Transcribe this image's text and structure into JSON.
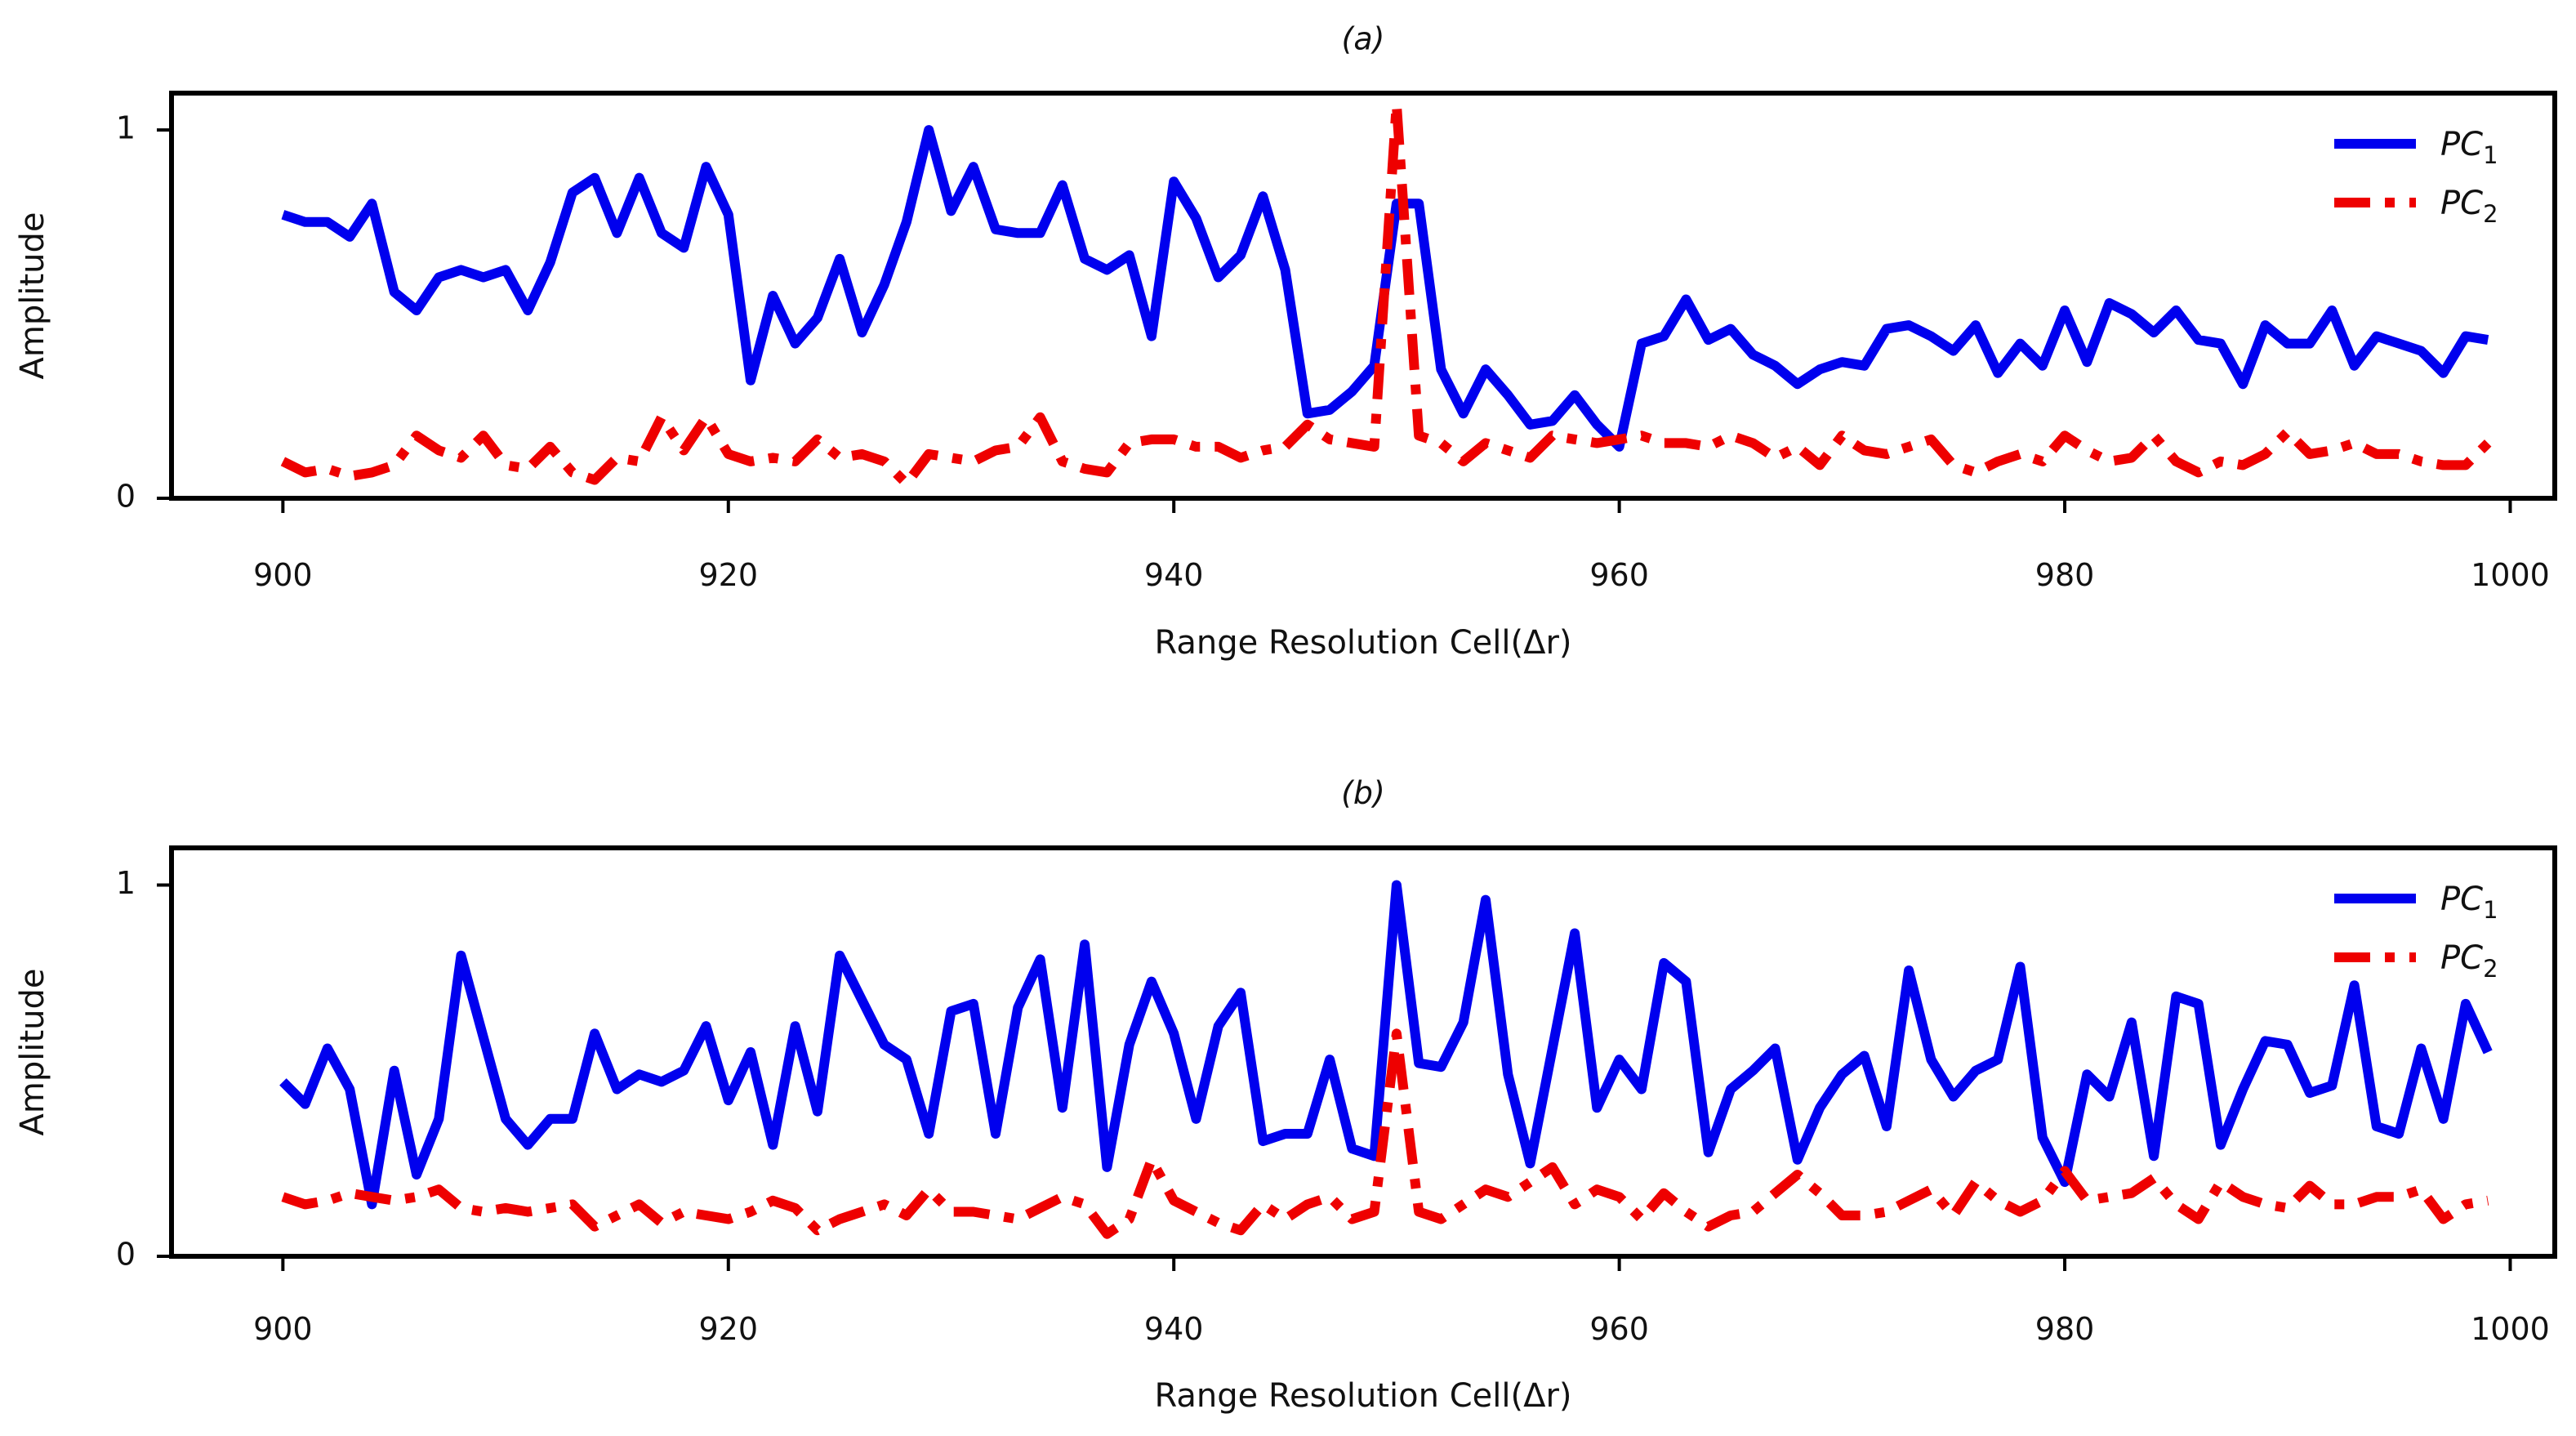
{
  "chart_data": [
    {
      "type": "line",
      "title": "(a)",
      "xlabel": "Range Resolution Cell(Δr)",
      "ylabel": "Amplitude",
      "xlim": [
        895,
        1002
      ],
      "ylim": [
        0,
        1.1
      ],
      "xticks": [
        900,
        920,
        940,
        960,
        980,
        1000
      ],
      "xtick_labels": [
        "900",
        "920",
        "940",
        "960",
        "980",
        "1000"
      ],
      "yticks": [
        0,
        1
      ],
      "ytick_labels": [
        "0",
        "1"
      ],
      "legend_position": "top-right",
      "x_start": 900,
      "series": [
        {
          "name": "PC",
          "subscript": "1",
          "color": "#0000ee",
          "style": "solid",
          "values": [
            0.77,
            0.75,
            0.75,
            0.71,
            0.8,
            0.56,
            0.51,
            0.6,
            0.62,
            0.6,
            0.62,
            0.51,
            0.64,
            0.83,
            0.87,
            0.72,
            0.87,
            0.72,
            0.68,
            0.9,
            0.77,
            0.32,
            0.55,
            0.42,
            0.49,
            0.65,
            0.45,
            0.58,
            0.75,
            1.0,
            0.78,
            0.9,
            0.73,
            0.72,
            0.72,
            0.85,
            0.65,
            0.62,
            0.66,
            0.44,
            0.86,
            0.76,
            0.6,
            0.66,
            0.82,
            0.62,
            0.23,
            0.24,
            0.29,
            0.36,
            0.8,
            0.8,
            0.35,
            0.23,
            0.35,
            0.28,
            0.2,
            0.21,
            0.28,
            0.2,
            0.14,
            0.42,
            0.44,
            0.54,
            0.43,
            0.46,
            0.39,
            0.36,
            0.31,
            0.35,
            0.37,
            0.36,
            0.46,
            0.47,
            0.44,
            0.4,
            0.47,
            0.34,
            0.42,
            0.36,
            0.51,
            0.37,
            0.53,
            0.5,
            0.45,
            0.51,
            0.43,
            0.42,
            0.31,
            0.47,
            0.42,
            0.42,
            0.51,
            0.36,
            0.44,
            0.42,
            0.4,
            0.34,
            0.44,
            0.43
          ]
        },
        {
          "name": "PC",
          "subscript": "2",
          "color": "#ee0000",
          "style": "dashdot",
          "values": [
            0.1,
            0.07,
            0.08,
            0.06,
            0.07,
            0.09,
            0.17,
            0.13,
            0.11,
            0.17,
            0.09,
            0.08,
            0.14,
            0.07,
            0.05,
            0.11,
            0.1,
            0.22,
            0.13,
            0.22,
            0.12,
            0.1,
            0.11,
            0.1,
            0.16,
            0.11,
            0.12,
            0.1,
            0.04,
            0.12,
            0.11,
            0.1,
            0.13,
            0.14,
            0.22,
            0.1,
            0.08,
            0.07,
            0.15,
            0.16,
            0.16,
            0.14,
            0.14,
            0.11,
            0.13,
            0.14,
            0.2,
            0.16,
            0.15,
            0.14,
            1.07,
            0.17,
            0.15,
            0.1,
            0.15,
            0.13,
            0.11,
            0.17,
            0.16,
            0.15,
            0.16,
            0.17,
            0.15,
            0.15,
            0.14,
            0.17,
            0.15,
            0.11,
            0.14,
            0.09,
            0.17,
            0.13,
            0.12,
            0.14,
            0.16,
            0.09,
            0.07,
            0.1,
            0.12,
            0.1,
            0.17,
            0.13,
            0.1,
            0.11,
            0.17,
            0.1,
            0.07,
            0.1,
            0.09,
            0.12,
            0.18,
            0.12,
            0.13,
            0.15,
            0.12,
            0.12,
            0.1,
            0.09,
            0.09,
            0.15
          ]
        }
      ]
    },
    {
      "type": "line",
      "title": "(b)",
      "xlabel": "Range Resolution Cell(Δr)",
      "ylabel": "Amplitude",
      "xlim": [
        895,
        1002
      ],
      "ylim": [
        0,
        1.1
      ],
      "xticks": [
        900,
        920,
        940,
        960,
        980,
        1000
      ],
      "xtick_labels": [
        "900",
        "920",
        "940",
        "960",
        "980",
        "1000"
      ],
      "yticks": [
        0,
        1
      ],
      "ytick_labels": [
        "0",
        "1"
      ],
      "legend_position": "top-right",
      "x_start": 900,
      "series": [
        {
          "name": "PC",
          "subscript": "1",
          "color": "#0000ee",
          "style": "solid",
          "values": [
            0.47,
            0.41,
            0.56,
            0.45,
            0.14,
            0.5,
            0.22,
            0.37,
            0.81,
            0.59,
            0.37,
            0.3,
            0.37,
            0.37,
            0.6,
            0.45,
            0.49,
            0.47,
            0.5,
            0.62,
            0.42,
            0.55,
            0.3,
            0.62,
            0.39,
            0.81,
            0.69,
            0.57,
            0.53,
            0.33,
            0.66,
            0.68,
            0.33,
            0.67,
            0.8,
            0.4,
            0.84,
            0.24,
            0.57,
            0.74,
            0.6,
            0.37,
            0.62,
            0.71,
            0.31,
            0.33,
            0.33,
            0.53,
            0.29,
            0.27,
            1.0,
            0.52,
            0.51,
            0.63,
            0.96,
            0.49,
            0.25,
            0.56,
            0.87,
            0.4,
            0.53,
            0.45,
            0.79,
            0.74,
            0.28,
            0.45,
            0.5,
            0.56,
            0.26,
            0.4,
            0.49,
            0.54,
            0.35,
            0.77,
            0.53,
            0.43,
            0.5,
            0.53,
            0.78,
            0.32,
            0.2,
            0.49,
            0.43,
            0.63,
            0.27,
            0.7,
            0.68,
            0.3,
            0.45,
            0.58,
            0.57,
            0.44,
            0.46,
            0.73,
            0.35,
            0.33,
            0.56,
            0.37,
            0.68,
            0.55
          ]
        },
        {
          "name": "PC",
          "subscript": "2",
          "color": "#ee0000",
          "style": "dashdot",
          "values": [
            0.16,
            0.14,
            0.15,
            0.17,
            0.16,
            0.15,
            0.16,
            0.18,
            0.13,
            0.12,
            0.13,
            0.12,
            0.13,
            0.14,
            0.08,
            0.11,
            0.14,
            0.09,
            0.12,
            0.11,
            0.1,
            0.12,
            0.15,
            0.13,
            0.07,
            0.1,
            0.12,
            0.14,
            0.11,
            0.18,
            0.12,
            0.12,
            0.11,
            0.1,
            0.13,
            0.16,
            0.14,
            0.06,
            0.1,
            0.26,
            0.15,
            0.12,
            0.09,
            0.07,
            0.14,
            0.1,
            0.14,
            0.16,
            0.1,
            0.12,
            0.6,
            0.12,
            0.1,
            0.14,
            0.18,
            0.16,
            0.2,
            0.24,
            0.14,
            0.18,
            0.16,
            0.1,
            0.17,
            0.12,
            0.08,
            0.11,
            0.12,
            0.17,
            0.22,
            0.17,
            0.11,
            0.11,
            0.12,
            0.15,
            0.18,
            0.11,
            0.2,
            0.15,
            0.12,
            0.15,
            0.23,
            0.15,
            0.16,
            0.17,
            0.21,
            0.14,
            0.1,
            0.2,
            0.16,
            0.14,
            0.13,
            0.19,
            0.14,
            0.14,
            0.16,
            0.16,
            0.18,
            0.1,
            0.14,
            0.15
          ]
        }
      ]
    }
  ]
}
